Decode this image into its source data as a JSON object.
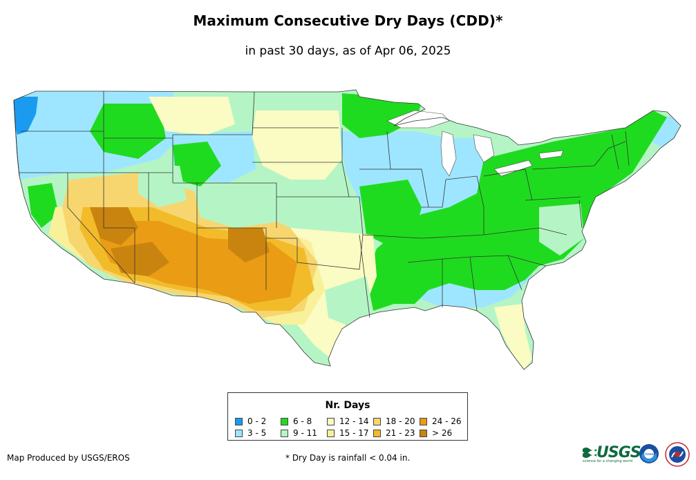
{
  "header": {
    "title": "Maximum Consecutive Dry Days (CDD)*",
    "subtitle": "in past 30 days, as of Apr 06, 2025"
  },
  "legend": {
    "title": "Nr. Days",
    "items": [
      {
        "label": "0 - 2",
        "color": "#1a9bf0"
      },
      {
        "label": "3 - 5",
        "color": "#9ee6ff"
      },
      {
        "label": "6 - 8",
        "color": "#1fdb1f"
      },
      {
        "label": "9 - 11",
        "color": "#b5f5c5"
      },
      {
        "label": "12 - 14",
        "color": "#fbfbc4"
      },
      {
        "label": "15 - 17",
        "color": "#f9f09a"
      },
      {
        "label": "18 - 20",
        "color": "#f7d670"
      },
      {
        "label": "21 - 23",
        "color": "#f2bb2a"
      },
      {
        "label": "24 - 26",
        "color": "#e99c14"
      },
      {
        "label": "> 26",
        "color": "#c98410"
      }
    ]
  },
  "footer": {
    "credit": "Map Produced by USGS/EROS",
    "footnote": "* Dry Day is rainfall < 0.04 in.",
    "logos": {
      "usgs": "USGS",
      "usgs_tagline": "science for a changing world",
      "noaa": "noaa"
    }
  }
}
